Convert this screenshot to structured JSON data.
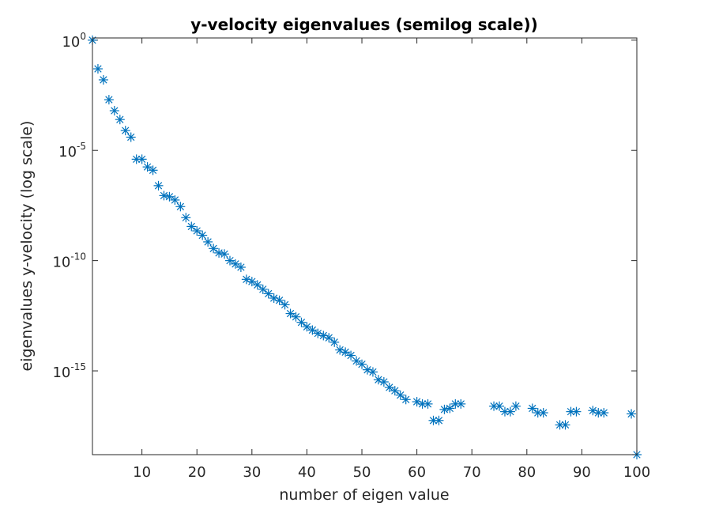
{
  "chart_data": {
    "type": "scatter",
    "title": "y-velocity eigenvalues (semilog scale))",
    "xlabel": "number of eigen value",
    "ylabel": "eigenvalues y-velocity (log scale)",
    "xlim": [
      1,
      100
    ],
    "ylim_log10": [
      -18.8,
      0.1
    ],
    "y_scale": "log",
    "x_ticks": [
      "10",
      "20",
      "30",
      "40",
      "50",
      "60",
      "70",
      "80",
      "90",
      "100"
    ],
    "x_tick_values": [
      10,
      20,
      30,
      40,
      50,
      60,
      70,
      80,
      90,
      100
    ],
    "y_ticks": [
      {
        "base": "10",
        "exp": "0",
        "log10": 0
      },
      {
        "base": "10",
        "exp": "-5",
        "log10": -5
      },
      {
        "base": "10",
        "exp": "-10",
        "log10": -10
      },
      {
        "base": "10",
        "exp": "-15",
        "log10": -15
      }
    ],
    "marker": "asterisk",
    "marker_color": "#0072BD",
    "grid": false,
    "series": [
      {
        "x": [
          1,
          2,
          3,
          4,
          5,
          6,
          7,
          8,
          9,
          10,
          11,
          12,
          13,
          14,
          15,
          16,
          17,
          18,
          19,
          20,
          21,
          22,
          23,
          24,
          25,
          26,
          27,
          28,
          29,
          30,
          31,
          32,
          33,
          34,
          35,
          36,
          37,
          38,
          39,
          40,
          41,
          42,
          43,
          44,
          45,
          46,
          47,
          48,
          49,
          50,
          51,
          52,
          53,
          54,
          55,
          56,
          57,
          58,
          60,
          61,
          62,
          63,
          64,
          65,
          66,
          67,
          68,
          74,
          75,
          76,
          77,
          78,
          81,
          82,
          83,
          86,
          87,
          88,
          89,
          92,
          93,
          94,
          99,
          100
        ],
        "log10_y": [
          0.0,
          -1.3,
          -1.8,
          -2.7,
          -3.2,
          -3.6,
          -4.1,
          -4.4,
          -5.4,
          -5.4,
          -5.75,
          -5.9,
          -6.6,
          -7.05,
          -7.1,
          -7.25,
          -7.55,
          -8.05,
          -8.45,
          -8.65,
          -8.85,
          -9.15,
          -9.45,
          -9.65,
          -9.7,
          -10.0,
          -10.15,
          -10.3,
          -10.85,
          -10.95,
          -11.1,
          -11.3,
          -11.5,
          -11.7,
          -11.8,
          -12.0,
          -12.4,
          -12.55,
          -12.8,
          -13.0,
          -13.15,
          -13.3,
          -13.4,
          -13.5,
          -13.7,
          -14.05,
          -14.15,
          -14.3,
          -14.55,
          -14.7,
          -14.95,
          -15.05,
          -15.4,
          -15.5,
          -15.75,
          -15.9,
          -16.1,
          -16.3,
          -16.4,
          -16.5,
          -16.5,
          -17.25,
          -17.25,
          -16.75,
          -16.7,
          -16.5,
          -16.5,
          -16.6,
          -16.6,
          -16.85,
          -16.85,
          -16.6,
          -16.7,
          -16.9,
          -16.9,
          -17.45,
          -17.45,
          -16.85,
          -16.85,
          -16.8,
          -16.9,
          -16.9,
          -16.95,
          -18.8
        ]
      }
    ]
  }
}
